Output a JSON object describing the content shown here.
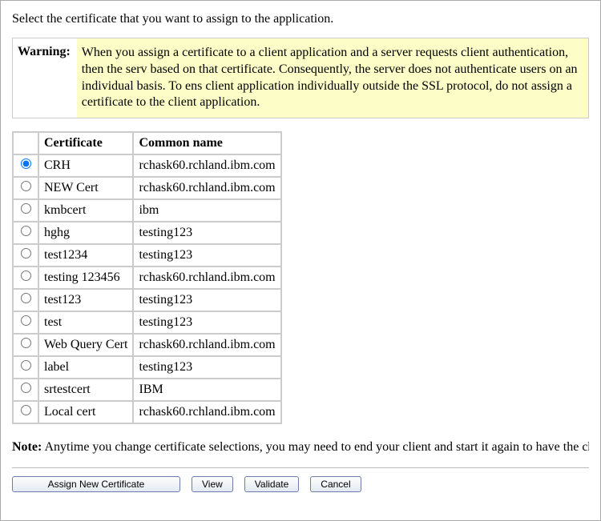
{
  "intro": "Select the certificate that you want to assign to the application.",
  "warning": {
    "label": "Warning:",
    "text": "When you assign a certificate to a client application and a server requests client authentication, then the serv based on that certificate. Consequently, the server does not authenticate users on an individual basis. To ens client application individually outside the SSL protocol, do not assign a certificate to the client application."
  },
  "table": {
    "headers": {
      "select": "",
      "certificate": "Certificate",
      "common_name": "Common name"
    },
    "rows": [
      {
        "selected": true,
        "certificate": "CRH",
        "common_name": "rchask60.rchland.ibm.com"
      },
      {
        "selected": false,
        "certificate": "NEW Cert",
        "common_name": "rchask60.rchland.ibm.com"
      },
      {
        "selected": false,
        "certificate": "kmbcert",
        "common_name": "ibm"
      },
      {
        "selected": false,
        "certificate": "hghg",
        "common_name": "testing123"
      },
      {
        "selected": false,
        "certificate": "test1234",
        "common_name": "testing123"
      },
      {
        "selected": false,
        "certificate": "testing 123456",
        "common_name": "rchask60.rchland.ibm.com"
      },
      {
        "selected": false,
        "certificate": "test123",
        "common_name": "testing123"
      },
      {
        "selected": false,
        "certificate": "test",
        "common_name": "testing123"
      },
      {
        "selected": false,
        "certificate": "Web Query Cert",
        "common_name": "rchask60.rchland.ibm.com"
      },
      {
        "selected": false,
        "certificate": "label",
        "common_name": "testing123"
      },
      {
        "selected": false,
        "certificate": "srtestcert",
        "common_name": "IBM"
      },
      {
        "selected": false,
        "certificate": "Local cert",
        "common_name": "rchask60.rchland.ibm.com"
      }
    ]
  },
  "note": {
    "label": "Note:",
    "text": "Anytime you change certificate selections, you may need to end your client and start it again to have the change tal"
  },
  "buttons": {
    "assign": "Assign New Certificate",
    "view": "View",
    "validate": "Validate",
    "cancel": "Cancel"
  }
}
